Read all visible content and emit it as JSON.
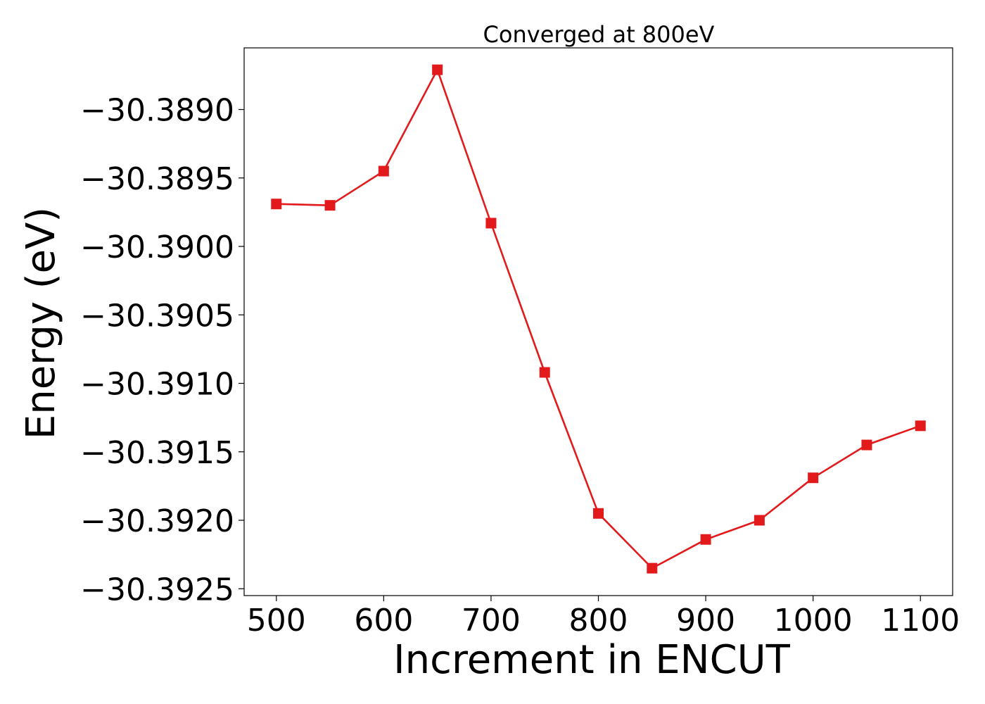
{
  "chart_data": {
    "type": "line",
    "title": "Converged at 800eV",
    "xlabel": "Increment in ENCUT",
    "ylabel": "Energy (eV)",
    "x": [
      500,
      550,
      600,
      650,
      700,
      750,
      800,
      850,
      900,
      950,
      1000,
      1050,
      1100
    ],
    "series": [
      {
        "values": [
          -30.38969,
          -30.3897,
          -30.38945,
          -30.38871,
          -30.38983,
          -30.39092,
          -30.39195,
          -30.39235,
          -30.39214,
          -30.392,
          -30.39169,
          -30.39145,
          -30.39131
        ],
        "color": "#e31a1c",
        "marker": "square"
      }
    ],
    "xlim": [
      470,
      1130
    ],
    "ylim": [
      -30.39255,
      -30.38855
    ],
    "xticks": [
      500,
      600,
      700,
      800,
      900,
      1000,
      1100
    ],
    "xtick_labels": [
      "500",
      "600",
      "700",
      "800",
      "900",
      "1000",
      "1100"
    ],
    "yticks": [
      -30.389,
      -30.3895,
      -30.39,
      -30.3905,
      -30.391,
      -30.3915,
      -30.392,
      -30.3925
    ],
    "ytick_labels": [
      "−30.3890",
      "−30.3895",
      "−30.3900",
      "−30.3905",
      "−30.3910",
      "−30.3915",
      "−30.3920",
      "−30.3925"
    ],
    "grid": false,
    "legend": "none"
  }
}
